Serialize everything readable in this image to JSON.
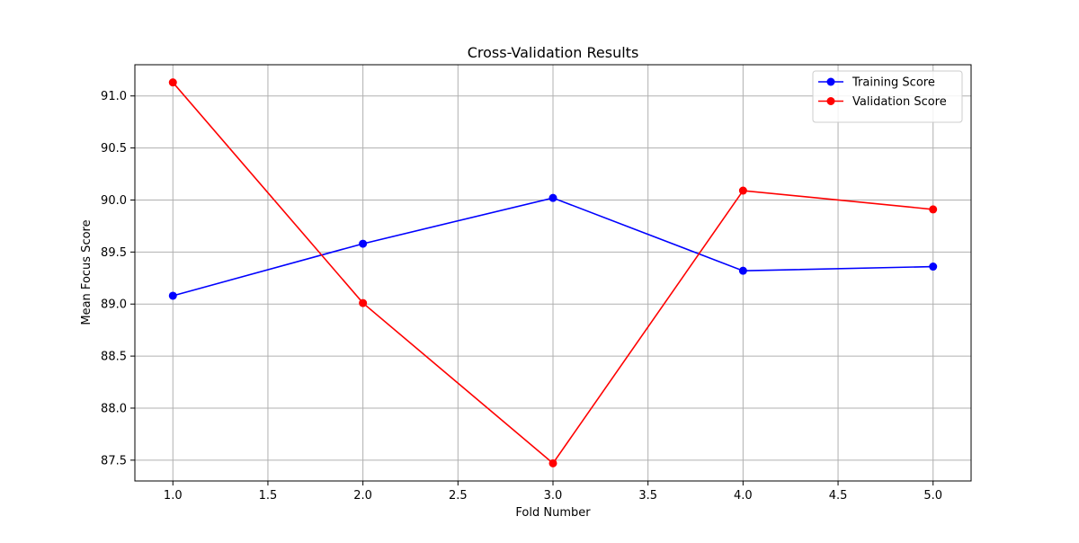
{
  "chart_data": {
    "type": "line",
    "title": "Cross-Validation Results",
    "xlabel": "Fold Number",
    "ylabel": "Mean Focus Score",
    "xlim": [
      0.8,
      5.2
    ],
    "ylim": [
      87.3,
      91.3
    ],
    "xticks": [
      1.0,
      1.5,
      2.0,
      2.5,
      3.0,
      3.5,
      4.0,
      4.5,
      5.0
    ],
    "xtick_labels": [
      "1.0",
      "1.5",
      "2.0",
      "2.5",
      "3.0",
      "3.5",
      "4.0",
      "4.5",
      "5.0"
    ],
    "yticks": [
      87.5,
      88.0,
      88.5,
      89.0,
      89.5,
      90.0,
      90.5,
      91.0
    ],
    "ytick_labels": [
      "87.5",
      "88.0",
      "88.5",
      "89.0",
      "89.5",
      "90.0",
      "90.5",
      "91.0"
    ],
    "grid": true,
    "legend_position": "top-right",
    "x": [
      1,
      2,
      3,
      4,
      5
    ],
    "series": [
      {
        "name": "Training Score",
        "color": "#0000ff",
        "marker": "circle",
        "values": [
          89.08,
          89.58,
          90.02,
          89.32,
          89.36
        ]
      },
      {
        "name": "Validation Score",
        "color": "#ff0000",
        "marker": "circle",
        "values": [
          91.13,
          89.01,
          87.47,
          90.09,
          89.91
        ]
      }
    ]
  }
}
